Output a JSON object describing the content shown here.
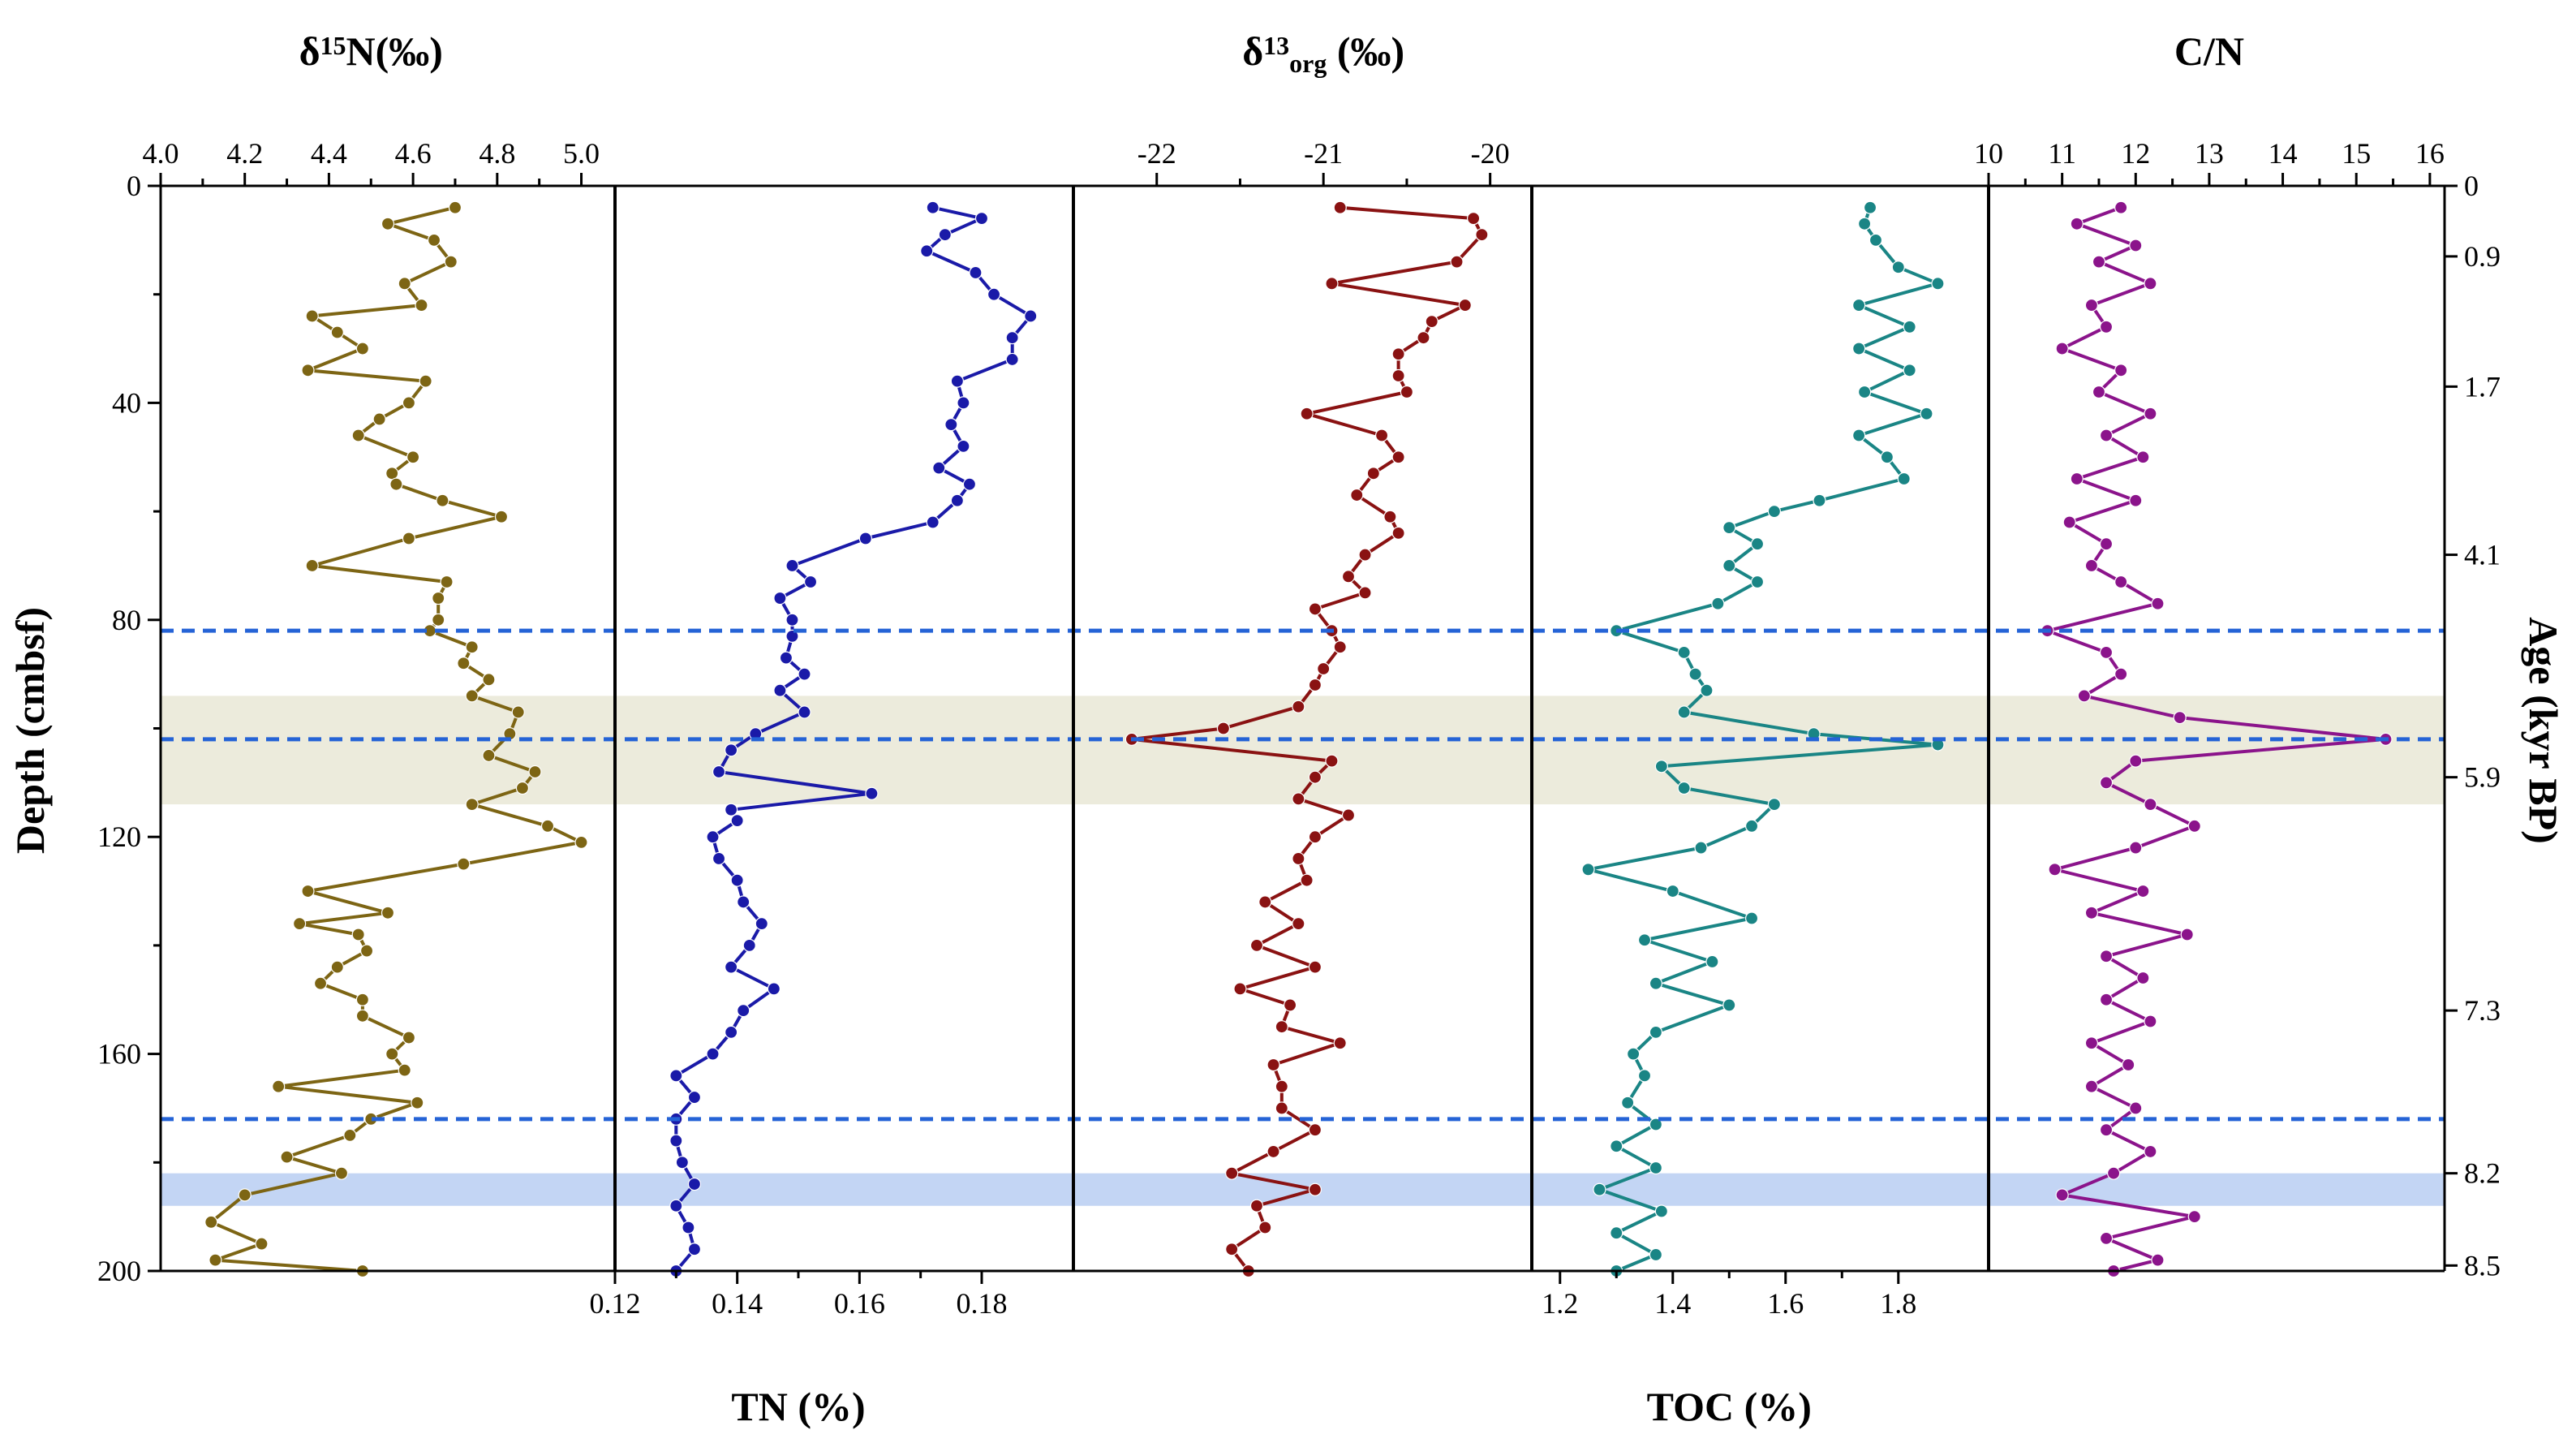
{
  "chart_data": {
    "type": "line",
    "depth_axis": {
      "label": "Depth (cmbsf)",
      "range": [
        0,
        200
      ],
      "ticks": [
        0,
        40,
        80,
        120,
        160,
        200
      ],
      "tick_labels": [
        "0",
        "40",
        "80",
        "120",
        "160",
        "200"
      ]
    },
    "age_axis": {
      "label": "Age (kyr BP)",
      "ticks": [
        {
          "depth": 0,
          "label": "0"
        },
        {
          "depth": 13,
          "label": "0.9"
        },
        {
          "depth": 37,
          "label": "1.7"
        },
        {
          "depth": 68,
          "label": "4.1"
        },
        {
          "depth": 109,
          "label": "5.9"
        },
        {
          "depth": 152,
          "label": "7.3"
        },
        {
          "depth": 182,
          "label": "8.2"
        },
        {
          "depth": 199,
          "label": "8.5"
        }
      ]
    },
    "reference_lines_depth": [
      82,
      102,
      172
    ],
    "shaded_bands": [
      {
        "from": 94,
        "to": 114,
        "color": "#ecebdc"
      },
      {
        "from": 182,
        "to": 188,
        "color": "#c3d5f4"
      }
    ],
    "panels": [
      {
        "name": "d15N",
        "title": "δ15N(‰)",
        "title_parts": {
          "pre": "δ",
          "sup": "15",
          "sub": "",
          "post": "N(‰)"
        },
        "axis_position": "top",
        "range": [
          4.0,
          5.0
        ],
        "ticks": [
          4.0,
          4.2,
          4.4,
          4.6,
          4.8,
          5.0
        ],
        "tick_labels": [
          "4.0",
          "4.2",
          "4.4",
          "4.6",
          "4.8",
          "5.0"
        ],
        "axis_min": 4.0,
        "axis_max": 5.08,
        "color": "#7d6514",
        "depth": [
          4,
          7,
          10,
          14,
          18,
          22,
          24,
          27,
          30,
          34,
          36,
          40,
          43,
          46,
          50,
          53,
          55,
          58,
          61,
          65,
          70,
          73,
          76,
          80,
          82,
          85,
          88,
          91,
          94,
          97,
          101,
          105,
          108,
          111,
          114,
          118,
          121,
          125,
          130,
          134,
          136,
          138,
          141,
          144,
          147,
          150,
          153,
          157,
          160,
          163,
          166,
          169,
          172,
          175,
          179,
          182,
          186,
          191,
          195,
          198,
          200
        ],
        "values": [
          4.7,
          4.54,
          4.65,
          4.69,
          4.58,
          4.62,
          4.36,
          4.42,
          4.48,
          4.35,
          4.63,
          4.59,
          4.52,
          4.47,
          4.6,
          4.55,
          4.56,
          4.67,
          4.81,
          4.59,
          4.36,
          4.68,
          4.66,
          4.66,
          4.64,
          4.74,
          4.72,
          4.78,
          4.74,
          4.85,
          4.83,
          4.78,
          4.89,
          4.86,
          4.74,
          4.92,
          5.0,
          4.72,
          4.35,
          4.54,
          4.33,
          4.47,
          4.49,
          4.42,
          4.38,
          4.48,
          4.48,
          4.59,
          4.55,
          4.58,
          4.28,
          4.61,
          4.5,
          4.45,
          4.3,
          4.43,
          4.2,
          4.12,
          4.24,
          4.13,
          4.48
        ]
      },
      {
        "name": "TN",
        "title": "TN (%)",
        "title_parts": {
          "pre": "TN (%)",
          "sup": "",
          "sub": "",
          "post": ""
        },
        "axis_position": "bottom",
        "range": [
          0.12,
          0.18
        ],
        "ticks": [
          0.12,
          0.14,
          0.16,
          0.18
        ],
        "tick_labels": [
          "0.12",
          "0.14",
          "0.16",
          "0.18"
        ],
        "axis_min": 0.12,
        "axis_max": 0.195,
        "color": "#1a1aa8",
        "depth": [
          4,
          6,
          9,
          12,
          16,
          20,
          24,
          28,
          32,
          36,
          40,
          44,
          48,
          52,
          55,
          58,
          62,
          65,
          70,
          73,
          76,
          80,
          83,
          87,
          90,
          93,
          97,
          101,
          104,
          108,
          112,
          115,
          117,
          120,
          124,
          128,
          132,
          136,
          140,
          144,
          148,
          152,
          156,
          160,
          164,
          168,
          172,
          176,
          180,
          184,
          188,
          192,
          196,
          200
        ],
        "values": [
          0.172,
          0.18,
          0.174,
          0.171,
          0.179,
          0.182,
          0.188,
          0.185,
          0.185,
          0.176,
          0.177,
          0.175,
          0.177,
          0.173,
          0.178,
          0.176,
          0.172,
          0.161,
          0.149,
          0.152,
          0.147,
          0.149,
          0.149,
          0.148,
          0.151,
          0.147,
          0.151,
          0.143,
          0.139,
          0.137,
          0.162,
          0.139,
          0.14,
          0.136,
          0.137,
          0.14,
          0.141,
          0.144,
          0.142,
          0.139,
          0.146,
          0.141,
          0.139,
          0.136,
          0.13,
          0.133,
          0.13,
          0.13,
          0.131,
          0.133,
          0.13,
          0.132,
          0.133,
          0.13
        ]
      },
      {
        "name": "d13Corg",
        "title": "δ13Corg (‰)",
        "title_parts": {
          "pre": "δ",
          "sup": "13",
          "sub": "org",
          "post": " (‰)"
        },
        "axis_position": "top",
        "range": [
          -22,
          -20
        ],
        "ticks": [
          -22,
          -21,
          -20
        ],
        "tick_labels": [
          "-22",
          "-21",
          "-20"
        ],
        "axis_min": -22.5,
        "axis_max": -19.75,
        "color": "#8a1212",
        "depth": [
          4,
          6,
          9,
          14,
          18,
          22,
          25,
          28,
          31,
          35,
          38,
          42,
          46,
          50,
          53,
          57,
          61,
          64,
          68,
          72,
          75,
          78,
          82,
          85,
          89,
          92,
          96,
          100,
          102,
          106,
          109,
          113,
          116,
          120,
          124,
          128,
          132,
          136,
          140,
          144,
          148,
          151,
          155,
          158,
          162,
          166,
          170,
          174,
          178,
          182,
          185,
          188,
          192,
          196,
          200
        ],
        "values": [
          -20.9,
          -20.1,
          -20.05,
          -20.2,
          -20.95,
          -20.15,
          -20.35,
          -20.4,
          -20.55,
          -20.55,
          -20.5,
          -21.1,
          -20.65,
          -20.55,
          -20.7,
          -20.8,
          -20.6,
          -20.55,
          -20.75,
          -20.85,
          -20.75,
          -21.05,
          -20.95,
          -20.9,
          -21.0,
          -21.05,
          -21.15,
          -21.6,
          -22.15,
          -20.95,
          -21.05,
          -21.15,
          -20.85,
          -21.05,
          -21.15,
          -21.1,
          -21.35,
          -21.15,
          -21.4,
          -21.05,
          -21.5,
          -21.2,
          -21.25,
          -20.9,
          -21.3,
          -21.25,
          -21.25,
          -21.05,
          -21.3,
          -21.55,
          -21.05,
          -21.4,
          -21.35,
          -21.55,
          -21.45
        ]
      },
      {
        "name": "TOC",
        "title": "TOC (%)",
        "title_parts": {
          "pre": "TOC (%)",
          "sup": "",
          "sub": "",
          "post": ""
        },
        "axis_position": "bottom",
        "range": [
          1.2,
          1.8
        ],
        "ticks": [
          1.2,
          1.4,
          1.6,
          1.8
        ],
        "tick_labels": [
          "1.2",
          "1.4",
          "1.6",
          "1.8"
        ],
        "axis_min": 1.15,
        "axis_max": 1.96,
        "color": "#1a8585",
        "depth": [
          4,
          7,
          10,
          15,
          18,
          22,
          26,
          30,
          34,
          38,
          42,
          46,
          50,
          54,
          58,
          60,
          63,
          66,
          70,
          73,
          77,
          82,
          86,
          90,
          93,
          97,
          101,
          103,
          107,
          111,
          114,
          118,
          122,
          126,
          130,
          135,
          139,
          143,
          147,
          151,
          156,
          160,
          164,
          169,
          173,
          177,
          181,
          185,
          189,
          193,
          197,
          200
        ],
        "values": [
          1.75,
          1.74,
          1.76,
          1.8,
          1.87,
          1.73,
          1.82,
          1.73,
          1.82,
          1.74,
          1.85,
          1.73,
          1.78,
          1.81,
          1.66,
          1.58,
          1.5,
          1.55,
          1.5,
          1.55,
          1.48,
          1.3,
          1.42,
          1.44,
          1.46,
          1.42,
          1.65,
          1.87,
          1.38,
          1.42,
          1.58,
          1.54,
          1.45,
          1.25,
          1.4,
          1.54,
          1.35,
          1.47,
          1.37,
          1.5,
          1.37,
          1.33,
          1.35,
          1.32,
          1.37,
          1.3,
          1.37,
          1.27,
          1.38,
          1.3,
          1.37,
          1.3
        ]
      },
      {
        "name": "CN",
        "title": "C/N",
        "title_parts": {
          "pre": "C/N",
          "sup": "",
          "sub": "",
          "post": ""
        },
        "axis_position": "top",
        "range": [
          10,
          16
        ],
        "ticks": [
          10,
          11,
          12,
          13,
          14,
          15,
          16
        ],
        "tick_labels": [
          "10",
          "11",
          "12",
          "13",
          "14",
          "15",
          "16"
        ],
        "axis_min": 10.0,
        "axis_max": 16.2,
        "color": "#8b148b",
        "depth": [
          4,
          7,
          11,
          14,
          18,
          22,
          26,
          30,
          34,
          38,
          42,
          46,
          50,
          54,
          58,
          62,
          66,
          70,
          73,
          77,
          82,
          86,
          90,
          94,
          98,
          102,
          106,
          110,
          114,
          118,
          122,
          126,
          130,
          134,
          138,
          142,
          146,
          150,
          154,
          158,
          162,
          166,
          170,
          174,
          178,
          182,
          186,
          190,
          194,
          198,
          200
        ],
        "values": [
          11.8,
          11.2,
          12.0,
          11.5,
          12.2,
          11.4,
          11.6,
          11.0,
          11.8,
          11.5,
          12.2,
          11.6,
          12.1,
          11.2,
          12.0,
          11.1,
          11.6,
          11.4,
          11.8,
          12.3,
          10.8,
          11.6,
          11.8,
          11.3,
          12.6,
          15.4,
          12.0,
          11.6,
          12.2,
          12.8,
          12.0,
          10.9,
          12.1,
          11.4,
          12.7,
          11.6,
          12.1,
          11.6,
          12.2,
          11.4,
          11.9,
          11.4,
          12.0,
          11.6,
          12.2,
          11.7,
          11.0,
          12.8,
          11.6,
          12.3,
          11.7
        ]
      }
    ]
  }
}
